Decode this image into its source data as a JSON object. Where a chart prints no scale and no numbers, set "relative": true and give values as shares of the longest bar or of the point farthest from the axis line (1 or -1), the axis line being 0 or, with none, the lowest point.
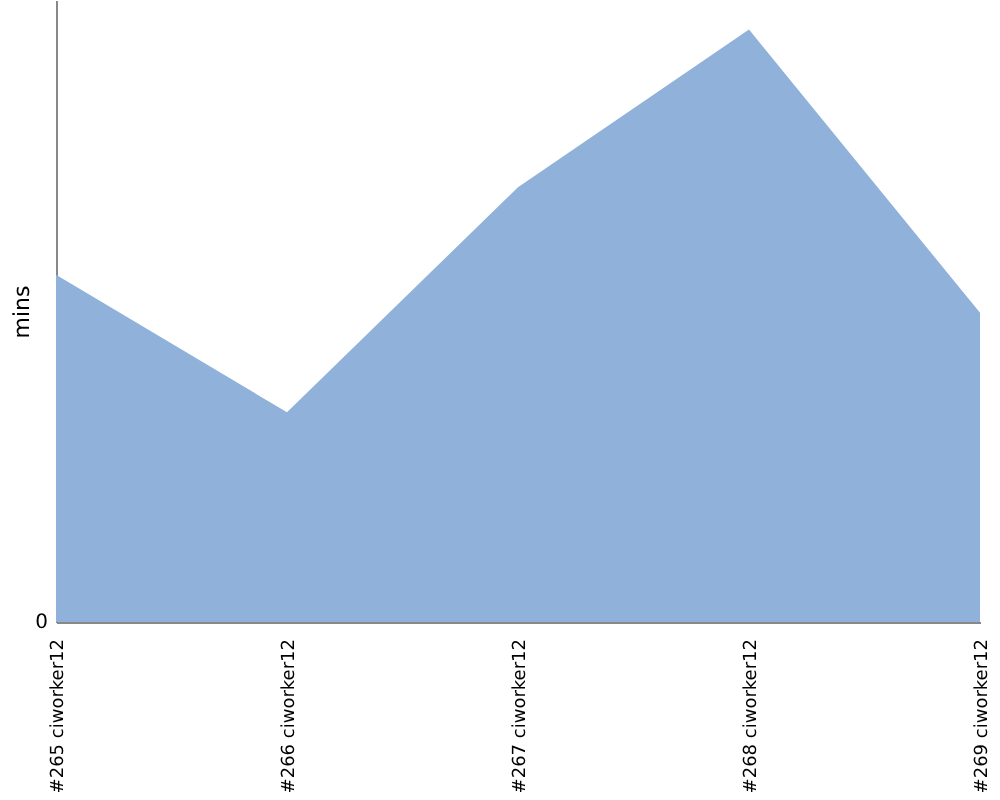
{
  "chart_data": {
    "type": "area",
    "ylabel": "mins",
    "relative": true,
    "annotations": [
      "0"
    ],
    "categories": [
      "#265 ciworker12",
      "#266 ciworker12",
      "#267 ciworker12",
      "#268 ciworker12",
      "#269 ciworker12"
    ],
    "series": [
      {
        "color": "#8fb1da",
        "values": [
          0.586,
          0.354,
          0.734,
          1,
          0.522
        ]
      }
    ],
    "grid": false
  }
}
